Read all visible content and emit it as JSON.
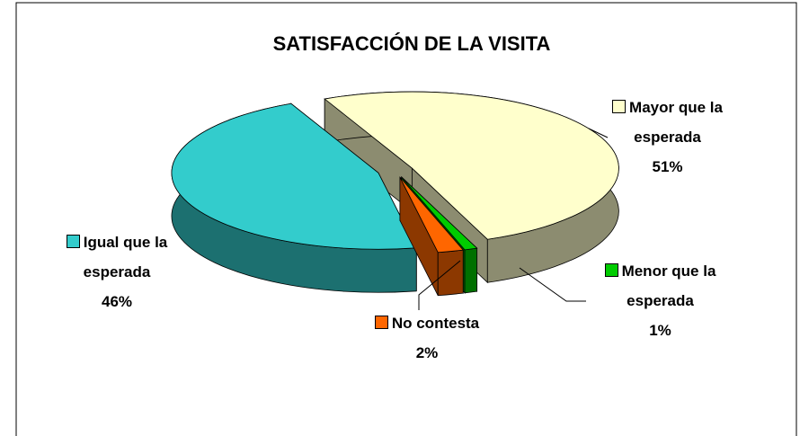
{
  "chart_data": {
    "type": "pie",
    "title": "SATISFACCIÓN DE LA VISITA",
    "categories": [
      "Mayor que la esperada",
      "Menor que la esperada",
      "No contesta",
      "Igual que la esperada"
    ],
    "values": [
      51,
      1,
      2,
      46
    ],
    "value_labels": [
      "51%",
      "1%",
      "2%",
      "46%"
    ],
    "colors": [
      "#FFFFCC",
      "#00CC00",
      "#FF6600",
      "#33CCCC"
    ]
  }
}
